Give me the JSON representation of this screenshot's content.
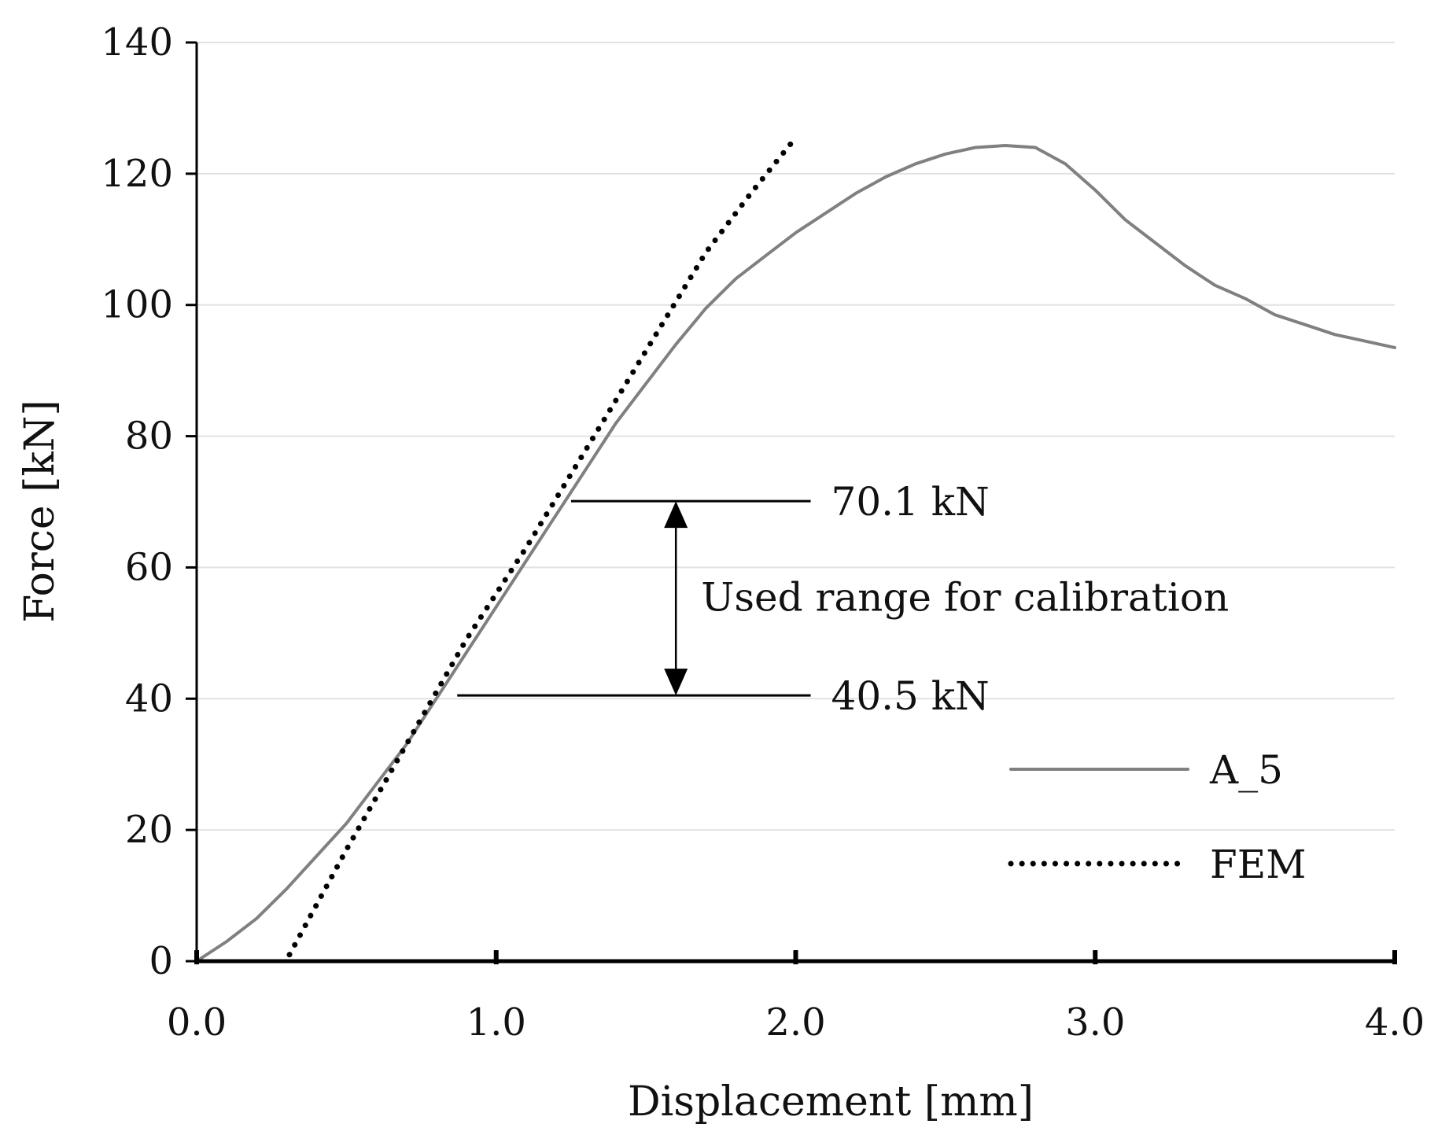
{
  "chart_data": {
    "type": "line",
    "title": "",
    "xlabel": "Displacement [mm]",
    "ylabel": "Force [kN]",
    "xlim": [
      0,
      4
    ],
    "ylim": [
      0,
      140
    ],
    "x_ticks": [
      "0.0",
      "1.0",
      "2.0",
      "3.0",
      "4.0"
    ],
    "y_ticks": [
      "0",
      "20",
      "40",
      "60",
      "80",
      "100",
      "120",
      "140"
    ],
    "grid": "horizontal",
    "legend_position": "bottom-right",
    "series": [
      {
        "name": "A_5",
        "style": "solid",
        "color": "#808080",
        "points": [
          [
            0,
            0
          ],
          [
            0.1,
            3
          ],
          [
            0.2,
            6.5
          ],
          [
            0.3,
            11
          ],
          [
            0.4,
            16
          ],
          [
            0.5,
            21
          ],
          [
            0.6,
            27
          ],
          [
            0.7,
            33
          ],
          [
            0.8,
            40
          ],
          [
            0.9,
            47
          ],
          [
            1.0,
            54
          ],
          [
            1.1,
            61
          ],
          [
            1.2,
            68
          ],
          [
            1.3,
            75
          ],
          [
            1.4,
            82
          ],
          [
            1.5,
            88
          ],
          [
            1.6,
            94
          ],
          [
            1.7,
            99.5
          ],
          [
            1.8,
            104
          ],
          [
            1.9,
            107.5
          ],
          [
            2.0,
            111
          ],
          [
            2.1,
            114
          ],
          [
            2.2,
            117
          ],
          [
            2.3,
            119.5
          ],
          [
            2.4,
            121.5
          ],
          [
            2.5,
            123
          ],
          [
            2.6,
            124
          ],
          [
            2.7,
            124.3
          ],
          [
            2.8,
            124
          ],
          [
            2.9,
            121.5
          ],
          [
            3.0,
            117.5
          ],
          [
            3.1,
            113
          ],
          [
            3.2,
            109.5
          ],
          [
            3.3,
            106
          ],
          [
            3.4,
            103
          ],
          [
            3.5,
            101
          ],
          [
            3.6,
            98.5
          ],
          [
            3.7,
            97
          ],
          [
            3.8,
            95.5
          ],
          [
            3.9,
            94.5
          ],
          [
            4.0,
            93.5
          ]
        ]
      },
      {
        "name": "FEM",
        "style": "dotted",
        "color": "#000000",
        "points": [
          [
            0.31,
            1
          ],
          [
            0.5,
            17
          ],
          [
            0.7,
            33
          ],
          [
            0.9,
            49
          ],
          [
            1.1,
            63
          ],
          [
            1.3,
            78
          ],
          [
            1.5,
            93
          ],
          [
            1.7,
            108
          ],
          [
            1.85,
            117
          ],
          [
            2.0,
            125.5
          ]
        ]
      }
    ],
    "annotations": [
      {
        "text": "70.1 kN",
        "y": 70.1,
        "x_start": 1.25,
        "x_end": 2.05
      },
      {
        "text": "40.5 kN",
        "y": 40.5,
        "x_start": 0.87,
        "x_end": 2.05
      },
      {
        "text": "Used range for calibration",
        "arrow_x": 1.6,
        "arrow_from": 70.1,
        "arrow_to": 40.5
      }
    ]
  }
}
